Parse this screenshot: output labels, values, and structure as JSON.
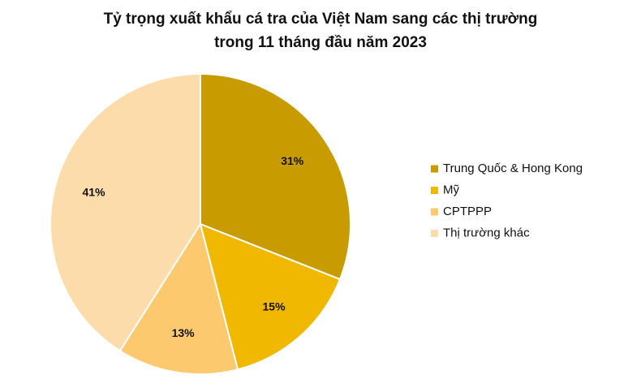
{
  "chart_data": {
    "type": "pie",
    "title": [
      "Tỷ trọng xuất khẩu cá tra của Việt Nam sang các thị trường",
      "trong 11 tháng đầu năm 2023"
    ],
    "categories": [
      "Trung Quốc & Hong Kong",
      "Mỹ",
      "CPTPPP",
      "Thị trường khác"
    ],
    "values": [
      31,
      15,
      13,
      41
    ],
    "value_labels": [
      "31%",
      "15%",
      "13%",
      "41%"
    ],
    "colors": [
      "#c89b00",
      "#f0b800",
      "#fcc96e",
      "#fddcab"
    ],
    "legend": "right"
  }
}
